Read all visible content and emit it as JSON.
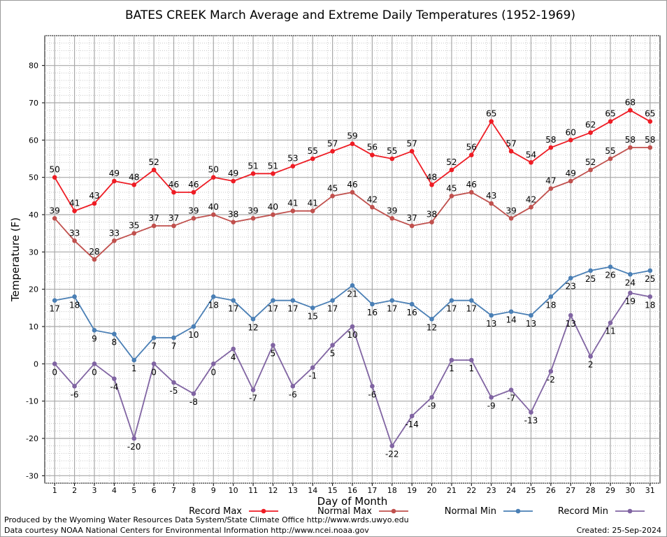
{
  "footer": {
    "credit_line_1": "Produced by the Wyoming Water Resources Data System/State Climate Office http://www.wrds.uwyo.edu",
    "credit_line_2": "Data courtesy NOAA National Centers for Environmental Information http://www.ncei.noaa.gov",
    "created": "Created:  25-Sep-2024"
  },
  "chart_data": {
    "type": "line",
    "title": "BATES CREEK March Average and Extreme Daily Temperatures (1952-1969)",
    "xlabel": "Day of Month",
    "ylabel": "Temperature (F)",
    "x": [
      1,
      2,
      3,
      4,
      5,
      6,
      7,
      8,
      9,
      10,
      11,
      12,
      13,
      14,
      15,
      16,
      17,
      18,
      19,
      20,
      21,
      22,
      23,
      24,
      25,
      26,
      27,
      28,
      29,
      30,
      31
    ],
    "xlim": [
      0.5,
      31.5
    ],
    "ylim": [
      -32,
      88
    ],
    "yticks": [
      -30,
      -20,
      -10,
      0,
      10,
      20,
      30,
      40,
      50,
      60,
      70,
      80
    ],
    "grid": true,
    "legend_position": "bottom",
    "series": [
      {
        "name": "Record Max",
        "color": "#ee1c24",
        "values": [
          50,
          41,
          43,
          49,
          48,
          52,
          46,
          46,
          50,
          49,
          51,
          51,
          53,
          55,
          57,
          59,
          56,
          55,
          57,
          48,
          52,
          56,
          65,
          57,
          54,
          58,
          60,
          62,
          65,
          68,
          65
        ]
      },
      {
        "name": "Normal Max",
        "color": "#c0504d",
        "values": [
          39,
          33,
          28,
          33,
          35,
          37,
          37,
          39,
          40,
          38,
          39,
          40,
          41,
          41,
          45,
          46,
          42,
          39,
          37,
          38,
          45,
          46,
          43,
          39,
          42,
          47,
          49,
          52,
          55,
          58,
          58
        ]
      },
      {
        "name": "Normal Min",
        "color": "#4a7fb5",
        "values": [
          17,
          18,
          9,
          8,
          1,
          7,
          7,
          10,
          18,
          17,
          12,
          17,
          17,
          15,
          17,
          21,
          16,
          17,
          16,
          12,
          17,
          17,
          13,
          14,
          13,
          18,
          23,
          25,
          26,
          24,
          25
        ]
      },
      {
        "name": "Record Min",
        "color": "#8064a2",
        "values": [
          0,
          -6,
          0,
          -4,
          -20,
          0,
          -5,
          -8,
          0,
          4,
          -7,
          5,
          -6,
          -1,
          5,
          10,
          -6,
          -22,
          -14,
          -9,
          1,
          1,
          -9,
          -7,
          -13,
          -2,
          13,
          2,
          11,
          19,
          18
        ]
      }
    ]
  }
}
